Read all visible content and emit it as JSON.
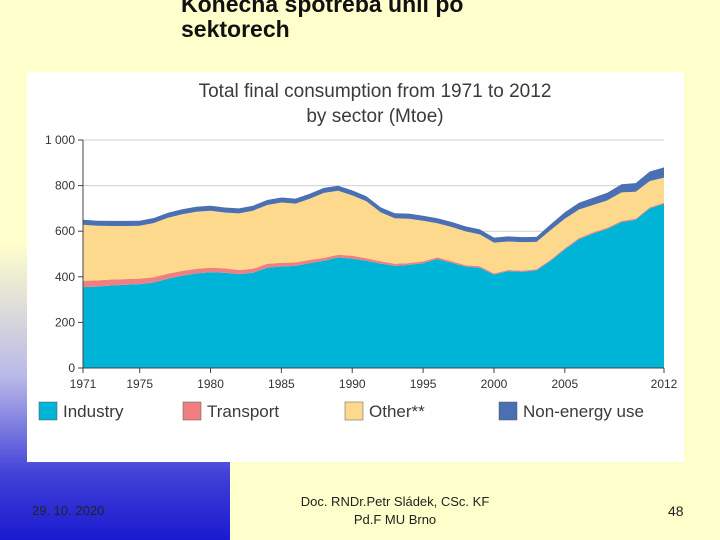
{
  "slide": {
    "title_line1": "Konečná spotřeba uhlí po",
    "title_line2": "sektorech",
    "date": "29. 10. 2020",
    "author_line1": "Doc. RNDr.Petr Sládek, CSc. KF",
    "author_line2": "Pd.F MU Brno",
    "page_number": "48"
  },
  "chart_data": {
    "type": "area",
    "stacked": true,
    "title_line1": "Total final consumption from 1971 to 2012",
    "title_line2": "by sector (Mtoe)",
    "ylim": [
      0,
      1000
    ],
    "yticks": [
      0,
      200,
      400,
      600,
      800,
      1000
    ],
    "ytick_labels": [
      "0",
      "200",
      "400",
      "600",
      "800",
      "1 000"
    ],
    "xlim": [
      1971,
      2012
    ],
    "xticks": [
      1971,
      1975,
      1980,
      1985,
      1990,
      1995,
      2000,
      2005,
      2012
    ],
    "xtick_labels": [
      "1971",
      "1975",
      "1980",
      "1985",
      "1990",
      "1995",
      "2000",
      "2005",
      "2012"
    ],
    "legend_position": "bottom",
    "x": [
      1971,
      1972,
      1973,
      1974,
      1975,
      1976,
      1977,
      1978,
      1979,
      1980,
      1981,
      1982,
      1983,
      1984,
      1985,
      1986,
      1987,
      1988,
      1989,
      1990,
      1991,
      1992,
      1993,
      1994,
      1995,
      1996,
      1997,
      1998,
      1999,
      2000,
      2001,
      2002,
      2003,
      2004,
      2005,
      2006,
      2007,
      2008,
      2009,
      2010,
      2011,
      2012
    ],
    "series": [
      {
        "name": "Industry",
        "color": "#00b4d8",
        "values": [
          355,
          357,
          362,
          365,
          368,
          375,
          392,
          405,
          415,
          420,
          418,
          412,
          418,
          440,
          445,
          448,
          460,
          470,
          485,
          480,
          470,
          458,
          448,
          452,
          460,
          478,
          462,
          445,
          440,
          410,
          425,
          422,
          428,
          470,
          520,
          565,
          590,
          610,
          640,
          650,
          700,
          720
        ]
      },
      {
        "name": "Transport",
        "color": "#f08080",
        "values": [
          28,
          27,
          26,
          25,
          24,
          23,
          22,
          21,
          20,
          20,
          19,
          18,
          17,
          17,
          16,
          15,
          14,
          13,
          12,
          12,
          11,
          10,
          9,
          8,
          8,
          7,
          7,
          6,
          6,
          5,
          5,
          5,
          5,
          5,
          5,
          5,
          5,
          5,
          5,
          5,
          5,
          5
        ]
      },
      {
        "name": "Other**",
        "color": "#fcd98c",
        "values": [
          245,
          240,
          235,
          233,
          232,
          238,
          245,
          248,
          250,
          250,
          245,
          248,
          255,
          258,
          265,
          258,
          268,
          285,
          280,
          265,
          250,
          215,
          200,
          195,
          178,
          150,
          150,
          148,
          140,
          135,
          125,
          125,
          120,
          130,
          130,
          125,
          120,
          120,
          125,
          118,
          115,
          110
        ]
      },
      {
        "name": "Non-energy use",
        "color": "#4a6fb3",
        "values": [
          22,
          22,
          22,
          22,
          22,
          22,
          22,
          22,
          22,
          22,
          22,
          22,
          22,
          22,
          22,
          22,
          22,
          22,
          22,
          22,
          22,
          22,
          22,
          22,
          22,
          22,
          22,
          22,
          22,
          22,
          22,
          22,
          22,
          25,
          28,
          30,
          32,
          34,
          36,
          38,
          42,
          45
        ]
      }
    ]
  }
}
